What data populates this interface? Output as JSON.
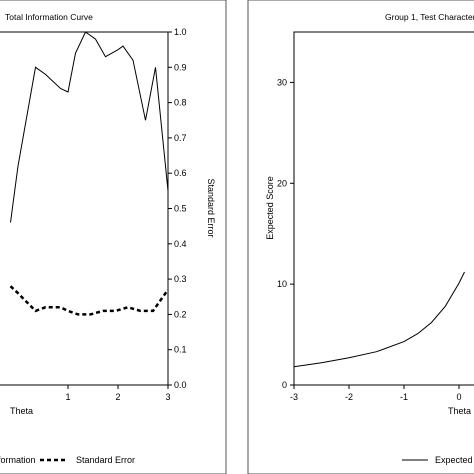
{
  "chart_data": [
    {
      "type": "line",
      "title": "Total Information Curve",
      "xlabel": "Theta",
      "y2label": "Standard Error",
      "xlim": [
        -3,
        3
      ],
      "y2lim": [
        0,
        1.0
      ],
      "x_ticks_visible": [
        "1",
        "2",
        "3"
      ],
      "y2_ticks": [
        "0.0",
        "0.1",
        "0.2",
        "0.3",
        "0.4",
        "0.5",
        "0.6",
        "0.7",
        "0.8",
        "0.9",
        "1.0"
      ],
      "legend": [
        "formation",
        "Standard Error"
      ],
      "series": [
        {
          "name": "formation",
          "style": "solid",
          "axis": "left",
          "x": [
            -0.15,
            0.0,
            0.35,
            0.55,
            0.85,
            1.0,
            1.15,
            1.35,
            1.55,
            1.75,
            2.0,
            2.1,
            2.3,
            2.55,
            2.75,
            3.0
          ],
          "y": [
            0.46,
            0.62,
            0.9,
            0.88,
            0.84,
            0.83,
            0.94,
            1.0,
            0.98,
            0.93,
            0.95,
            0.96,
            0.92,
            0.75,
            0.9,
            0.55
          ]
        },
        {
          "name": "Standard Error",
          "style": "dashed",
          "axis": "right",
          "x": [
            -0.15,
            0.0,
            0.35,
            0.55,
            0.85,
            1.0,
            1.2,
            1.45,
            1.7,
            1.95,
            2.2,
            2.45,
            2.7,
            3.0
          ],
          "y": [
            0.28,
            0.26,
            0.21,
            0.22,
            0.22,
            0.21,
            0.2,
            0.2,
            0.21,
            0.21,
            0.22,
            0.21,
            0.21,
            0.27
          ]
        }
      ]
    },
    {
      "type": "line",
      "title": "Group 1, Test Characteri",
      "xlabel": "Theta",
      "ylabel": "Expected Score",
      "xlim": [
        -3,
        3
      ],
      "ylim": [
        0,
        35
      ],
      "x_ticks": [
        "-3",
        "-2",
        "-1",
        "0"
      ],
      "y_ticks": [
        "0",
        "10",
        "20",
        "30"
      ],
      "legend": [
        "Expected"
      ],
      "series": [
        {
          "name": "Expected",
          "style": "solid",
          "x": [
            -3.0,
            -2.5,
            -2.0,
            -1.5,
            -1.0,
            -0.75,
            -0.5,
            -0.25,
            0.0,
            0.1
          ],
          "y": [
            1.8,
            2.2,
            2.7,
            3.3,
            4.3,
            5.1,
            6.2,
            7.8,
            10.1,
            11.2
          ]
        }
      ]
    }
  ]
}
